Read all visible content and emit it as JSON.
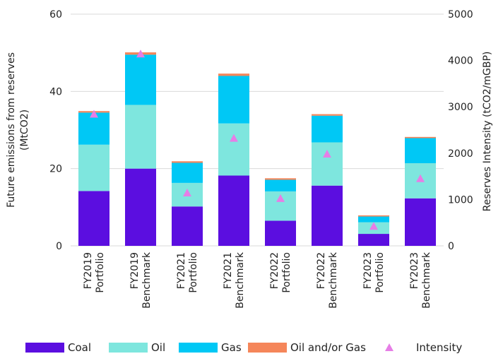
{
  "chart_data": {
    "type": "bar",
    "stacked": true,
    "categories": [
      [
        "FY2019",
        "Portfolio"
      ],
      [
        "FY2019",
        "Benchmark"
      ],
      [
        "FY2021",
        "Portfolio"
      ],
      [
        "FY2021",
        "Benchmark"
      ],
      [
        "FY2022",
        "Portfolio"
      ],
      [
        "FY2022",
        "Benchmark"
      ],
      [
        "FY2023",
        "Portfolio"
      ],
      [
        "FY2023",
        "Benchmark"
      ]
    ],
    "series": [
      {
        "name": "Coal",
        "color": "#5b0ee0",
        "values": [
          14.2,
          20.0,
          10.2,
          18.2,
          6.5,
          15.6,
          3.1,
          12.3
        ]
      },
      {
        "name": "Oil",
        "color": "#7ee6de",
        "values": [
          12.0,
          16.5,
          6.1,
          13.5,
          7.6,
          11.2,
          3.0,
          9.1
        ]
      },
      {
        "name": "Gas",
        "color": "#00c8f5",
        "values": [
          8.3,
          13.0,
          5.2,
          12.3,
          3.0,
          6.9,
          1.5,
          6.5
        ]
      },
      {
        "name": "Oil and/or Gas",
        "color": "#f5865a",
        "values": [
          0.4,
          0.6,
          0.4,
          0.6,
          0.4,
          0.4,
          0.3,
          0.3
        ]
      }
    ],
    "secondary_series": {
      "name": "Intensity",
      "marker": "triangle",
      "color": "#e67ee6",
      "values": [
        2850,
        4150,
        1150,
        2330,
        1030,
        1990,
        430,
        1460
      ]
    },
    "ylabel": "Future emissions from reserves\n(MtCO2)",
    "y2label": "Reserves Intensity (tCO2/mGBP)",
    "ylim": [
      0,
      60
    ],
    "y2lim": [
      0,
      5000
    ],
    "yticks": [
      0,
      20,
      40,
      60
    ],
    "y2ticks": [
      0,
      1000,
      2000,
      3000,
      4000,
      5000
    ],
    "grid": true,
    "legend": "bottom"
  }
}
